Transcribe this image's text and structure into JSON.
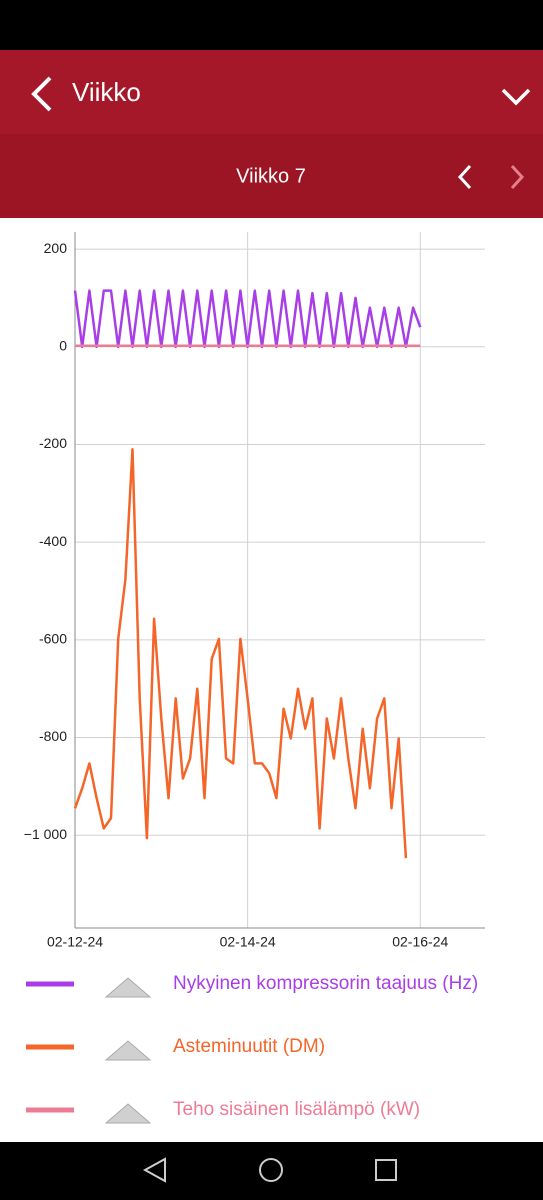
{
  "header": {
    "title": "Viikko",
    "period": "Viikko 7"
  },
  "chart_data": {
    "type": "line",
    "x": [
      "2024-02-12T00:00",
      "2024-02-12T02:00",
      "2024-02-12T04:00",
      "2024-02-12T06:00",
      "2024-02-12T08:00",
      "2024-02-12T10:00",
      "2024-02-12T12:00",
      "2024-02-12T14:00",
      "2024-02-12T16:00",
      "2024-02-12T18:00",
      "2024-02-12T20:00",
      "2024-02-12T22:00",
      "2024-02-13T00:00",
      "2024-02-13T02:00",
      "2024-02-13T04:00",
      "2024-02-13T06:00",
      "2024-02-13T08:00",
      "2024-02-13T10:00",
      "2024-02-13T12:00",
      "2024-02-13T14:00",
      "2024-02-13T16:00",
      "2024-02-13T18:00",
      "2024-02-13T20:00",
      "2024-02-13T22:00",
      "2024-02-14T00:00",
      "2024-02-14T02:00",
      "2024-02-14T04:00",
      "2024-02-14T06:00",
      "2024-02-14T08:00",
      "2024-02-14T10:00",
      "2024-02-14T12:00",
      "2024-02-14T14:00",
      "2024-02-14T16:00",
      "2024-02-14T18:00",
      "2024-02-14T20:00",
      "2024-02-14T22:00",
      "2024-02-15T00:00",
      "2024-02-15T02:00",
      "2024-02-15T04:00",
      "2024-02-15T06:00",
      "2024-02-15T08:00",
      "2024-02-15T10:00",
      "2024-02-15T12:00",
      "2024-02-15T14:00",
      "2024-02-15T16:00",
      "2024-02-15T18:00",
      "2024-02-15T20:00",
      "2024-02-15T22:00",
      "2024-02-16T00:00"
    ],
    "series": [
      {
        "name": "Nykyinen kompressorin taajuus (Hz)",
        "color": "#a83ee8",
        "values": [
          115,
          0,
          115,
          0,
          115,
          115,
          0,
          115,
          0,
          115,
          0,
          115,
          0,
          115,
          0,
          115,
          0,
          115,
          0,
          115,
          0,
          115,
          0,
          115,
          0,
          115,
          0,
          115,
          0,
          115,
          0,
          115,
          0,
          110,
          0,
          110,
          0,
          110,
          0,
          100,
          0,
          80,
          0,
          80,
          0,
          80,
          0,
          80,
          40
        ]
      },
      {
        "name": "Asteminuutit (DM)",
        "color": "#f4652a",
        "values": [
          -945,
          -904,
          -853,
          -924,
          -986,
          -965,
          -598,
          -476,
          -210,
          -720,
          -1006,
          -557,
          -761,
          -924,
          -720,
          -884,
          -843,
          -700,
          -924,
          -639,
          -598,
          -843,
          -853,
          -598,
          -720,
          -853,
          -853,
          -873,
          -924,
          -741,
          -802,
          -700,
          -782,
          -720,
          -986,
          -761,
          -843,
          -720,
          -843,
          -945,
          -782,
          -904,
          -761,
          -720,
          -945,
          -802,
          -1047,
          null,
          null
        ]
      },
      {
        "name": "Teho sisäinen lisälämpö (kW)",
        "color": "#ee7b95",
        "values": [
          2,
          2,
          2,
          2,
          2,
          2,
          2,
          2,
          2,
          2,
          2,
          2,
          2,
          2,
          2,
          2,
          2,
          2,
          2,
          2,
          2,
          2,
          2,
          2,
          2,
          2,
          2,
          2,
          2,
          2,
          2,
          2,
          2,
          2,
          2,
          2,
          2,
          2,
          2,
          2,
          2,
          2,
          2,
          2,
          2,
          2,
          2,
          2,
          2
        ]
      }
    ],
    "xlim": [
      "2024-02-12T00:00",
      "2024-02-16T18:00"
    ],
    "xticks": [
      {
        "value": "2024-02-12T00:00",
        "label": "02-12-24"
      },
      {
        "value": "2024-02-14T00:00",
        "label": "02-14-24"
      },
      {
        "value": "2024-02-16T00:00",
        "label": "02-16-24"
      }
    ],
    "ylim": [
      -1190,
      235
    ],
    "yticks": [
      200,
      0,
      -200,
      -400,
      -600,
      -800,
      {
        "value": -1000,
        "label": "−1 000"
      }
    ],
    "grid": true
  }
}
